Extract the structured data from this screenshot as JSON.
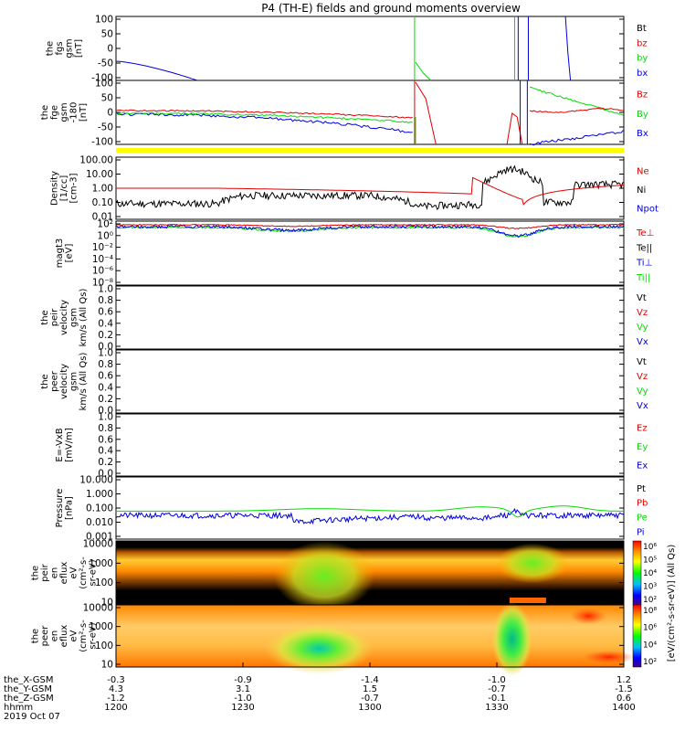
{
  "title": "P4 (TH-E) fields and ground moments overview",
  "colors": {
    "red": "#e00000",
    "green": "#00dd00",
    "blue": "#0000dd",
    "black": "#000000",
    "yellow": "#ffff00"
  },
  "chart_data": {
    "type": "line",
    "x": {
      "start": "1200",
      "end": "1400",
      "unit": "hhmm",
      "ticks": [
        "1200",
        "1230",
        "1300",
        "1330",
        "1400"
      ]
    },
    "panels": [
      {
        "id": "fgs-gsm",
        "ylabel": [
          "the",
          "fgs",
          "gsm",
          "[nT]"
        ],
        "ylim": [
          -100,
          100
        ],
        "yticks": [
          "100",
          "50",
          "0",
          "-50",
          "-100"
        ],
        "legend": [
          {
            "name": "Bt",
            "color": "#000000"
          },
          {
            "name": "bz",
            "color": "#e00000"
          },
          {
            "name": "by",
            "color": "#00dd00"
          },
          {
            "name": "bx",
            "color": "#0000dd"
          }
        ]
      },
      {
        "id": "fge-gsm",
        "ylabel": [
          "the",
          "fge",
          "gsm",
          "-180",
          "[nT]"
        ],
        "ylim": [
          -120,
          120
        ],
        "yticks": [
          "100",
          "50",
          "0",
          "-50",
          "-100"
        ],
        "legend": [
          {
            "name": "Bz",
            "color": "#e00000"
          },
          {
            "name": "By",
            "color": "#00dd00"
          },
          {
            "name": "Bx",
            "color": "#0000dd"
          }
        ]
      },
      {
        "id": "density",
        "ylabel": [
          "Density",
          "[1/cc]",
          "[cm-3]"
        ],
        "scale": "log",
        "ylim": [
          0.01,
          100
        ],
        "yticks": [
          "100.00",
          "10.00",
          "1.00",
          "0.10",
          "0.01"
        ],
        "legend": [
          {
            "name": "Ne",
            "color": "#e00000"
          },
          {
            "name": "Ni",
            "color": "#000000"
          },
          {
            "name": "Npot",
            "color": "#0000dd"
          }
        ]
      },
      {
        "id": "temperature",
        "ylabel": [
          "magt3",
          "[eV]"
        ],
        "scale": "log",
        "yticks": [
          "10²",
          "10⁰",
          "10⁻²",
          "10⁻⁴",
          "10⁻⁶",
          "10⁻⁸"
        ],
        "legend": [
          {
            "name": "Te⊥",
            "color": "#e00000"
          },
          {
            "name": "Te||",
            "color": "#000000"
          },
          {
            "name": "Ti⊥",
            "color": "#0000dd"
          },
          {
            "name": "Ti||",
            "color": "#00dd00"
          }
        ]
      },
      {
        "id": "peir-velocity",
        "ylabel": [
          "the",
          "peir",
          "velocity",
          "gsm",
          "km/s (All Qs)"
        ],
        "ylim": [
          0,
          1
        ],
        "yticks": [
          "1.0",
          "0.8",
          "0.6",
          "0.4",
          "0.2",
          "0.0"
        ],
        "legend": [
          {
            "name": "Vt",
            "color": "#000000"
          },
          {
            "name": "Vz",
            "color": "#e00000"
          },
          {
            "name": "Vy",
            "color": "#00dd00"
          },
          {
            "name": "Vx",
            "color": "#0000dd"
          }
        ]
      },
      {
        "id": "peer-velocity",
        "ylabel": [
          "the",
          "peer",
          "velocity",
          "gsm",
          "km/s (All Qs)"
        ],
        "ylim": [
          0,
          1
        ],
        "yticks": [
          "1.0",
          "0.8",
          "0.6",
          "0.4",
          "0.2",
          "0.0"
        ],
        "legend": [
          {
            "name": "Vt",
            "color": "#000000"
          },
          {
            "name": "Vz",
            "color": "#e00000"
          },
          {
            "name": "Vy",
            "color": "#00dd00"
          },
          {
            "name": "Vx",
            "color": "#0000dd"
          }
        ]
      },
      {
        "id": "efield",
        "ylabel": [
          "E=-VxB",
          "[mV/m]"
        ],
        "ylim": [
          0,
          1
        ],
        "yticks": [
          "1.0",
          "0.8",
          "0.6",
          "0.4",
          "0.2",
          "0.0"
        ],
        "legend": [
          {
            "name": "Ez",
            "color": "#e00000"
          },
          {
            "name": "Ey",
            "color": "#00dd00"
          },
          {
            "name": "Ex",
            "color": "#0000dd"
          }
        ]
      },
      {
        "id": "pressure",
        "ylabel": [
          "Pressure",
          "[nPa]"
        ],
        "scale": "log",
        "ylim": [
          0.001,
          10
        ],
        "yticks": [
          "10.000",
          "1.000",
          "0.100",
          "0.010",
          "0.001"
        ],
        "legend": [
          {
            "name": "Pt",
            "color": "#000000"
          },
          {
            "name": "Pb",
            "color": "#e00000"
          },
          {
            "name": "Pe",
            "color": "#00dd00"
          },
          {
            "name": "Pi",
            "color": "#0000dd"
          }
        ]
      },
      {
        "id": "peir-eflux",
        "ylabel": [
          "the",
          "peir",
          "en",
          "eflux",
          "eV",
          "(cm²-s-",
          "sr-eV)"
        ],
        "scale": "log",
        "ylim": [
          10,
          10000
        ],
        "yticks": [
          "10000",
          "1000",
          "100",
          "10"
        ]
      },
      {
        "id": "peer-eflux",
        "ylabel": [
          "the",
          "peer",
          "en",
          "eflux",
          "eV",
          "(cm²-s-",
          "sr-eV)"
        ],
        "scale": "log",
        "ylim": [
          10,
          10000
        ],
        "yticks": [
          "10000",
          "1000",
          "100",
          "10"
        ]
      }
    ],
    "colorbars": [
      {
        "label": "[eV/(cm²-s-sr-eV)] (All Qs)",
        "ticks": [
          "10⁶",
          "10⁵",
          "10⁴",
          "10³",
          "10²"
        ]
      },
      {
        "label": "[eV/(cm²-s-sr-eV)] (All Qs)",
        "ticks": [
          "10⁸",
          "10⁶",
          "10⁴",
          "10²"
        ]
      }
    ],
    "ephemeris": {
      "labels": [
        "the_X-GSM",
        "the_Y-GSM",
        "the_Z-GSM",
        "hhmm",
        "2019 Oct 07"
      ],
      "columns": [
        [
          "-0.3",
          "4.3",
          "-1.2",
          "1200"
        ],
        [
          "-0.9",
          "3.1",
          "-1.0",
          "1230"
        ],
        [
          "-1.4",
          "1.5",
          "-0.7",
          "1300"
        ],
        [
          "-1.0",
          "-0.7",
          "-0.1",
          "1330"
        ],
        [
          "1.2",
          "-1.5",
          "0.6",
          "1400"
        ]
      ]
    }
  }
}
